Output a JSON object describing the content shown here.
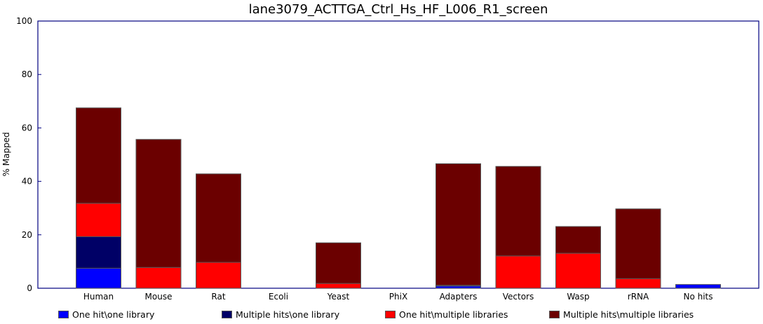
{
  "chart_data": {
    "type": "bar",
    "stacked": true,
    "title": "lane3079_ACTTGA_Ctrl_Hs_HF_L006_R1_screen",
    "ylabel": "% Mapped",
    "xlabel": "",
    "ylim": [
      0,
      100
    ],
    "yticks": [
      0,
      20,
      40,
      60,
      80,
      100
    ],
    "grid": false,
    "legend_position": "bottom",
    "categories": [
      "Human",
      "Mouse",
      "Rat",
      "Ecoli",
      "Yeast",
      "PhiX",
      "Adapters",
      "Vectors",
      "Wasp",
      "rRNA",
      "No hits"
    ],
    "series": [
      {
        "name": "One hit\\one library",
        "color": "#0000ff",
        "values": [
          7.5,
          0,
          0,
          0,
          0,
          0,
          0.8,
          0,
          0,
          0,
          1.4
        ]
      },
      {
        "name": "Multiple hits\\one library",
        "color": "#000066",
        "values": [
          11.8,
          0,
          0,
          0,
          0,
          0,
          0.3,
          0,
          0,
          0,
          0
        ]
      },
      {
        "name": "One hit\\multiple libraries",
        "color": "#ff0000",
        "values": [
          12.5,
          7.8,
          9.7,
          0,
          1.8,
          0,
          0,
          12.1,
          13.1,
          3.6,
          0
        ]
      },
      {
        "name": "Multiple hits\\multiple libraries",
        "color": "#6b0000",
        "values": [
          35.7,
          47.9,
          33.1,
          0,
          15.2,
          0,
          45.5,
          33.5,
          10.0,
          26.1,
          0
        ]
      }
    ]
  }
}
